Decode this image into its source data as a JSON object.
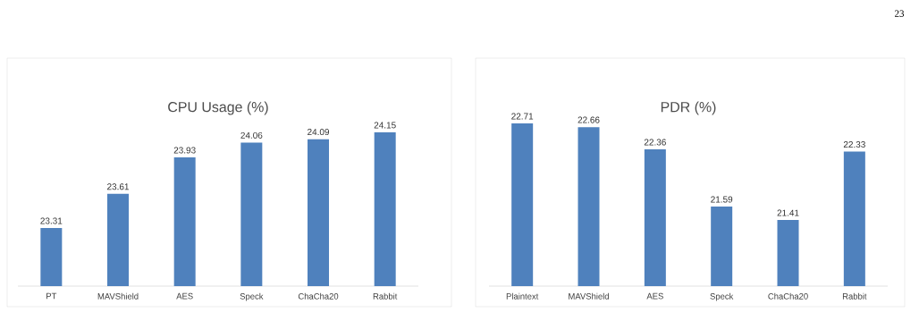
{
  "chart_data": [
    {
      "type": "bar",
      "title": "CPU Usage (%)",
      "categories": [
        "PT",
        "MAVShield",
        "AES",
        "Speck",
        "ChaCha20",
        "Rabbit"
      ],
      "values": [
        23.31,
        23.61,
        23.93,
        24.06,
        24.09,
        24.15
      ],
      "color": "#4f81bd",
      "ylim": [
        22.8,
        24.15
      ],
      "data_labels": true,
      "tick_labels": "x"
    },
    {
      "type": "bar",
      "title": "PDR (%)",
      "categories": [
        "Plaintext",
        "MAVShield",
        "AES",
        "Speck",
        "ChaCha20",
        "Rabbit"
      ],
      "values": [
        22.71,
        22.66,
        22.36,
        21.59,
        21.41,
        22.33
      ],
      "color": "#4f81bd",
      "ylim": [
        20.52,
        22.71
      ],
      "data_labels": true,
      "tick_labels": "x",
      "annotations": [
        "23"
      ]
    }
  ]
}
